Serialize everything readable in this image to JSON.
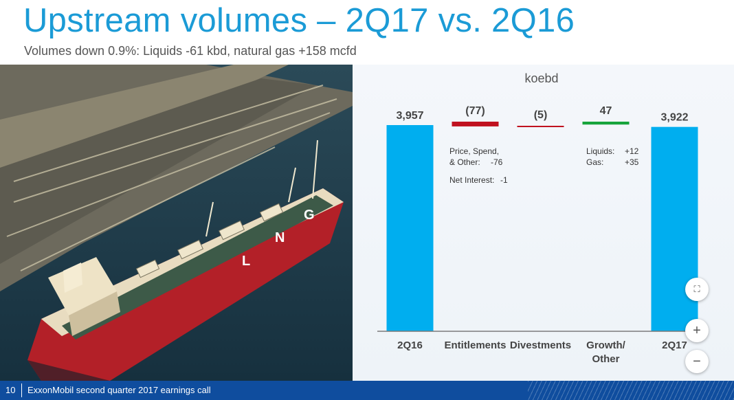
{
  "slide": {
    "title": "Upstream volumes – 2Q17 vs. 2Q16",
    "subtitle": "Volumes down 0.9%:  Liquids -61 kbd, natural gas +158 mcfd"
  },
  "chart_data": {
    "type": "bar",
    "unit_label": "koebd",
    "categories": [
      "2Q16",
      "Entitlements",
      "Divestments",
      "Growth/ Other",
      "2Q17"
    ],
    "values": [
      3957,
      -77,
      -5,
      47,
      3922
    ],
    "value_labels": [
      "3,957",
      "(77)",
      "(5)",
      "47",
      "3,922"
    ],
    "bar_colors": [
      "#00aeef",
      "#c0121f",
      "#c0121f",
      "#17a43b",
      "#00aeef"
    ]
  },
  "notes": {
    "entitlements": {
      "line1": "Price, Spend,",
      "line2_label": "& Other:",
      "line2_value": "-76",
      "line3_label": "Net Interest:",
      "line3_value": "-1"
    },
    "growth": {
      "liquids_label": "Liquids:",
      "liquids_value": "+12",
      "gas_label": "Gas:",
      "gas_value": "+35"
    }
  },
  "controls": {
    "fit_icon": "compress-icon",
    "zoom_in_icon": "plus-icon",
    "zoom_out_icon": "minus-icon",
    "zoom_in_glyph": "+",
    "zoom_out_glyph": "−",
    "fit_glyph": "⛶"
  },
  "footer": {
    "page_number": "10",
    "text": "ExxonMobil second quarter 2017 earnings call"
  }
}
